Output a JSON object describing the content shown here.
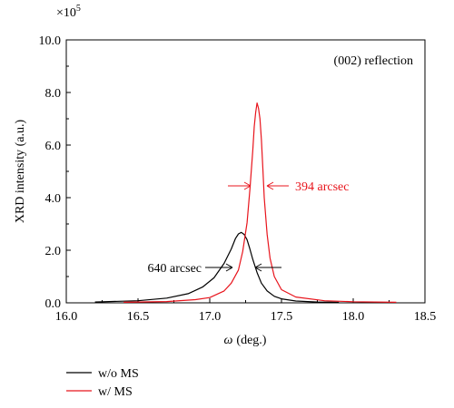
{
  "chart_data": {
    "type": "line",
    "title": "",
    "xlabel_symbol": "ω",
    "xlabel_unit": "(deg.)",
    "ylabel": "XRD intensity (a.u.)",
    "y_multiplier": "×10",
    "y_multiplier_exp": "5",
    "xlim": [
      16.0,
      18.5
    ],
    "ylim": [
      0.0,
      10.0
    ],
    "xticks": [
      "16.0",
      "16.5",
      "17.0",
      "17.5",
      "18.0",
      "18.5"
    ],
    "yticks": [
      "0.0",
      "2.0",
      "4.0",
      "6.0",
      "8.0",
      "10.0"
    ],
    "grid": false,
    "legend_position": "below",
    "annotation_reflection": "(002) reflection",
    "series": [
      {
        "name": "w/o MS",
        "color": "#000000",
        "x": [
          16.2,
          16.5,
          16.7,
          16.85,
          16.95,
          17.03,
          17.1,
          17.15,
          17.18,
          17.2,
          17.22,
          17.24,
          17.26,
          17.28,
          17.3,
          17.33,
          17.36,
          17.4,
          17.45,
          17.5,
          17.6,
          17.75,
          17.9
        ],
        "y": [
          0.03,
          0.08,
          0.18,
          0.35,
          0.6,
          0.95,
          1.5,
          2.05,
          2.45,
          2.62,
          2.68,
          2.6,
          2.4,
          2.05,
          1.65,
          1.15,
          0.75,
          0.45,
          0.25,
          0.15,
          0.07,
          0.03,
          0.02
        ],
        "fwhm_label": "640 arcsec"
      },
      {
        "name": "w/ MS",
        "color": "#e8141c",
        "x": [
          16.4,
          16.7,
          16.9,
          17.0,
          17.1,
          17.15,
          17.2,
          17.23,
          17.26,
          17.28,
          17.3,
          17.31,
          17.32,
          17.33,
          17.34,
          17.35,
          17.36,
          17.37,
          17.38,
          17.4,
          17.42,
          17.45,
          17.5,
          17.6,
          17.8,
          18.0,
          18.3
        ],
        "y": [
          0.02,
          0.05,
          0.12,
          0.2,
          0.45,
          0.75,
          1.25,
          1.95,
          3.05,
          4.3,
          5.8,
          6.7,
          7.25,
          7.6,
          7.4,
          7.0,
          6.2,
          5.1,
          4.0,
          2.6,
          1.7,
          1.0,
          0.5,
          0.22,
          0.08,
          0.04,
          0.02
        ],
        "fwhm_label": "394 arcsec"
      }
    ]
  }
}
